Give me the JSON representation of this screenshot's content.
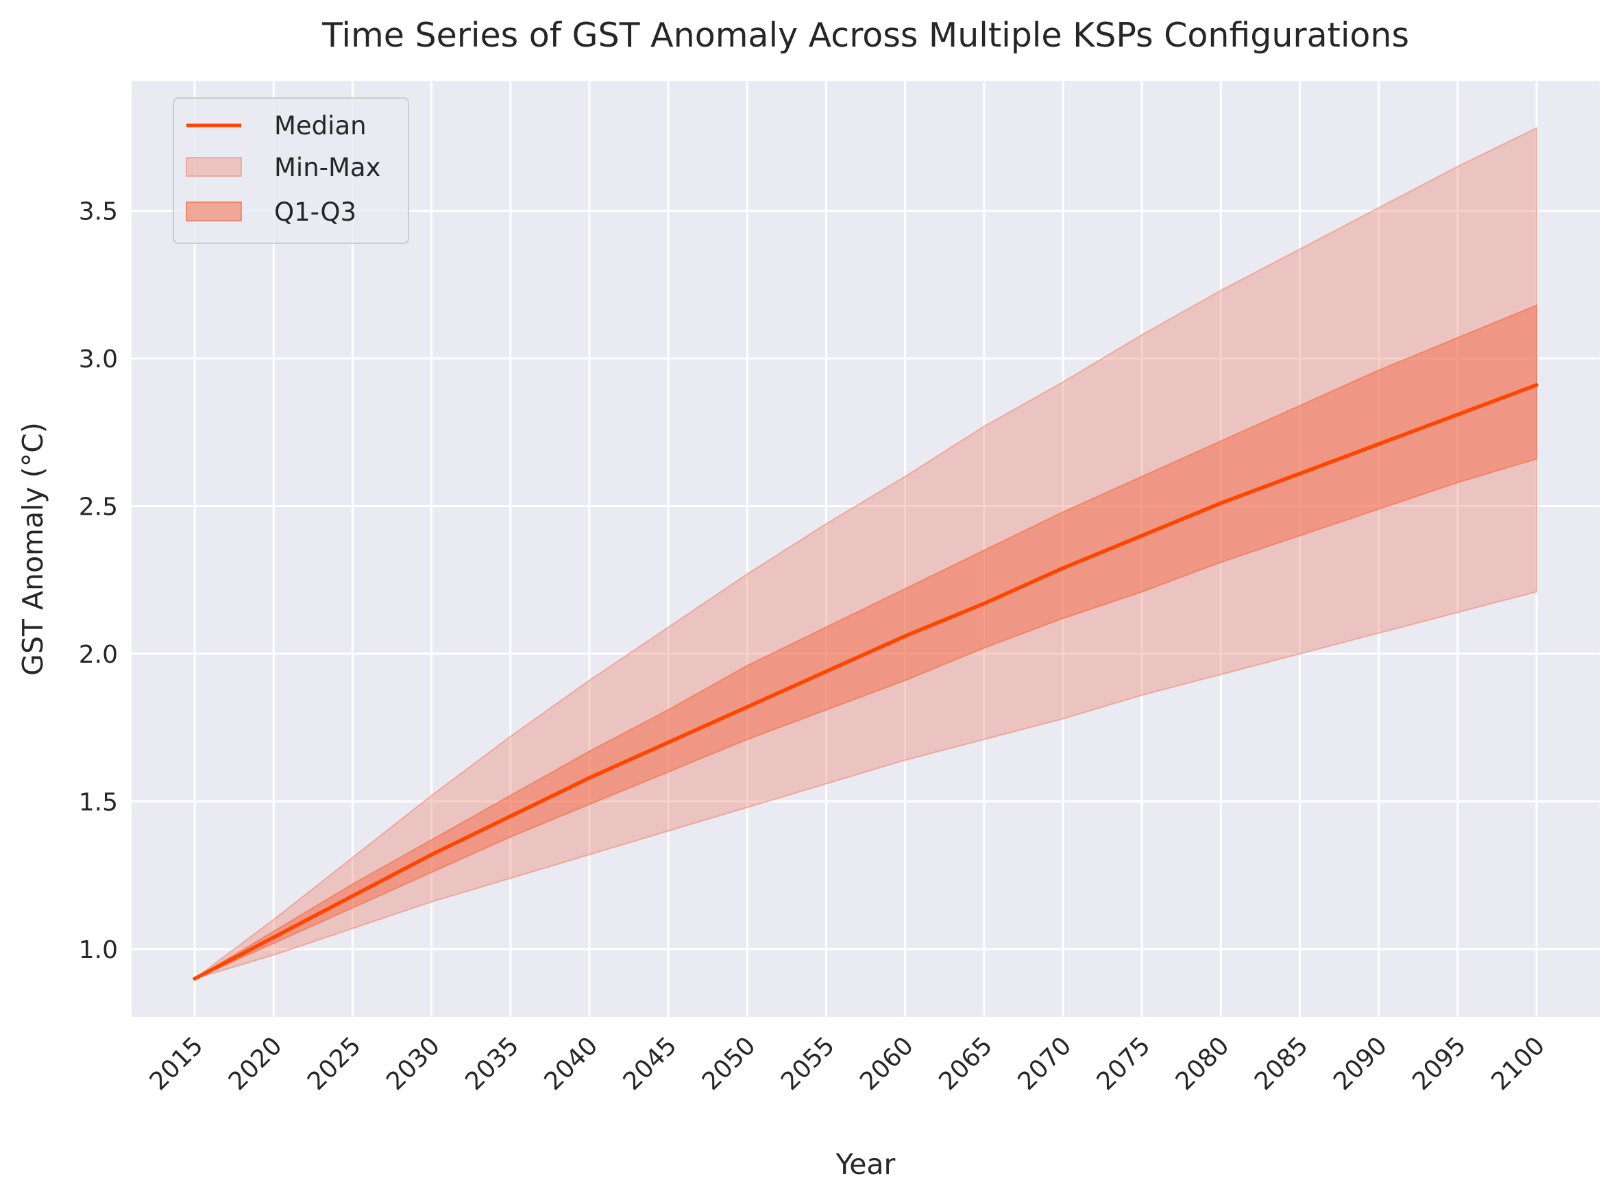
{
  "chart_data": {
    "type": "line",
    "title": "Time Series of GST Anomaly Across Multiple KSPs Configurations",
    "xlabel": "Year",
    "ylabel": "GST Anomaly (°C)",
    "xlim": [
      2011,
      2104
    ],
    "ylim": [
      0.77,
      3.94
    ],
    "x_ticks": [
      2015,
      2020,
      2025,
      2030,
      2035,
      2040,
      2045,
      2050,
      2055,
      2060,
      2065,
      2070,
      2075,
      2080,
      2085,
      2090,
      2095,
      2100
    ],
    "x_tick_labels": [
      "2015",
      "2020",
      "2025",
      "2030",
      "2035",
      "2040",
      "2045",
      "2050",
      "2055",
      "2060",
      "2065",
      "2070",
      "2075",
      "2080",
      "2085",
      "2090",
      "2095",
      "2100"
    ],
    "y_ticks": [
      1.0,
      1.5,
      2.0,
      2.5,
      3.0,
      3.5
    ],
    "y_tick_labels": [
      "1.0",
      "1.5",
      "2.0",
      "2.5",
      "3.0",
      "3.5"
    ],
    "grid": true,
    "legend_position": "top-left",
    "x": [
      2015,
      2020,
      2025,
      2030,
      2035,
      2040,
      2045,
      2050,
      2055,
      2060,
      2065,
      2070,
      2075,
      2080,
      2085,
      2090,
      2095,
      2100
    ],
    "series": [
      {
        "name": "Median",
        "kind": "line",
        "color": "#ff4500",
        "values": [
          0.9,
          1.04,
          1.18,
          1.32,
          1.45,
          1.58,
          1.7,
          1.82,
          1.94,
          2.06,
          2.17,
          2.29,
          2.4,
          2.51,
          2.61,
          2.71,
          2.81,
          2.91
        ]
      },
      {
        "name": "Min-Max",
        "kind": "band",
        "color": "#ee8c78",
        "lower": [
          0.9,
          0.98,
          1.07,
          1.16,
          1.24,
          1.32,
          1.4,
          1.48,
          1.56,
          1.64,
          1.71,
          1.78,
          1.86,
          1.93,
          2.0,
          2.07,
          2.14,
          2.21
        ],
        "upper": [
          0.9,
          1.1,
          1.31,
          1.52,
          1.72,
          1.91,
          2.09,
          2.27,
          2.44,
          2.6,
          2.77,
          2.92,
          3.08,
          3.23,
          3.37,
          3.51,
          3.65,
          3.78
        ]
      },
      {
        "name": "Q1-Q3",
        "kind": "band",
        "color": "#f27a5b",
        "lower": [
          0.9,
          1.02,
          1.14,
          1.26,
          1.38,
          1.49,
          1.6,
          1.71,
          1.81,
          1.91,
          2.02,
          2.12,
          2.21,
          2.31,
          2.4,
          2.49,
          2.58,
          2.66
        ],
        "upper": [
          0.9,
          1.06,
          1.22,
          1.37,
          1.52,
          1.67,
          1.81,
          1.96,
          2.09,
          2.22,
          2.35,
          2.48,
          2.6,
          2.72,
          2.84,
          2.96,
          3.07,
          3.18
        ]
      }
    ],
    "colors": {
      "plot_background": "#eaeaf2",
      "grid": "#ffffff",
      "text": "#262626"
    }
  }
}
